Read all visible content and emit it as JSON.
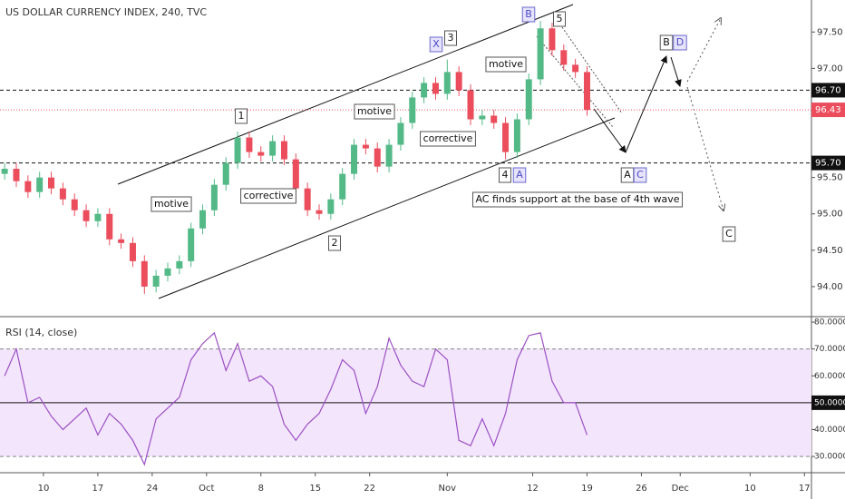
{
  "chart_data": [
    {
      "type": "candlestick",
      "title": "US DOLLAR CURRENCY INDEX, 240, TVC",
      "x": [
        4,
        5.5,
        7,
        8.5,
        10,
        11.5,
        13,
        14.5,
        16,
        17.5,
        19,
        20.5,
        22,
        23.5,
        25,
        26.5,
        28,
        29.5,
        31,
        32.5,
        34,
        35.5,
        37,
        38.5,
        40,
        41.5,
        43,
        44.5,
        46,
        47.5,
        49,
        50.5,
        52,
        53.5,
        55,
        56.5,
        58,
        59.5,
        61,
        62.5,
        64,
        65.5,
        67,
        68.5,
        70,
        71.5,
        73,
        74.5,
        76,
        77.5,
        79
      ],
      "open": [
        95.55,
        95.62,
        95.45,
        95.3,
        95.5,
        95.35,
        95.2,
        95.05,
        94.9,
        95.0,
        94.65,
        94.6,
        94.35,
        94.0,
        94.15,
        94.25,
        94.35,
        94.8,
        95.05,
        95.4,
        95.7,
        96.05,
        95.85,
        95.8,
        96.0,
        95.75,
        95.35,
        95.05,
        95.0,
        95.2,
        95.55,
        95.95,
        95.9,
        95.65,
        95.95,
        96.25,
        96.6,
        96.8,
        96.65,
        96.95,
        96.7,
        96.3,
        96.35,
        96.25,
        95.85,
        96.3,
        96.85,
        97.55,
        97.25,
        97.05,
        96.95
      ],
      "high": [
        95.7,
        95.7,
        95.53,
        95.58,
        95.58,
        95.43,
        95.28,
        95.13,
        95.08,
        95.08,
        94.73,
        94.68,
        94.43,
        94.23,
        94.33,
        94.43,
        94.88,
        95.13,
        95.48,
        95.78,
        96.13,
        96.13,
        95.93,
        96.08,
        96.08,
        95.83,
        95.43,
        95.13,
        95.28,
        95.63,
        96.03,
        96.03,
        95.98,
        96.03,
        96.33,
        96.68,
        96.88,
        96.88,
        97.12,
        97.03,
        96.78,
        96.43,
        96.43,
        96.33,
        96.38,
        96.93,
        97.65,
        97.63,
        97.33,
        97.13,
        97.03
      ],
      "low": [
        95.47,
        95.37,
        95.22,
        95.22,
        95.27,
        95.12,
        94.97,
        94.82,
        94.82,
        94.57,
        94.52,
        94.27,
        93.9,
        93.92,
        94.07,
        94.17,
        94.27,
        94.72,
        94.97,
        95.32,
        95.62,
        95.77,
        95.72,
        95.72,
        95.67,
        95.27,
        94.97,
        94.92,
        94.92,
        95.12,
        95.47,
        95.82,
        95.57,
        95.57,
        95.87,
        96.17,
        96.52,
        96.57,
        96.57,
        96.62,
        96.22,
        96.22,
        96.17,
        95.75,
        95.77,
        96.22,
        96.77,
        97.17,
        96.97,
        96.87,
        96.35
      ],
      "close": [
        95.62,
        95.45,
        95.3,
        95.5,
        95.35,
        95.2,
        95.05,
        94.9,
        95.0,
        94.65,
        94.6,
        94.35,
        94.0,
        94.15,
        94.25,
        94.35,
        94.8,
        95.05,
        95.4,
        95.7,
        96.05,
        95.85,
        95.8,
        96.0,
        95.75,
        95.35,
        95.05,
        95.0,
        95.2,
        95.55,
        95.95,
        95.9,
        95.65,
        95.95,
        96.25,
        96.6,
        96.8,
        96.65,
        96.95,
        96.7,
        96.3,
        96.35,
        96.25,
        95.85,
        96.3,
        96.85,
        97.55,
        97.25,
        97.05,
        96.95,
        96.43
      ],
      "up_color": "#53b987",
      "down_color": "#eb4d5c",
      "xlim": [
        3.4,
        107.9
      ],
      "ylim": [
        93.6,
        97.94
      ],
      "yticks": [
        {
          "value": 94,
          "label": "94.00"
        },
        {
          "value": 94.5,
          "label": "94.50"
        },
        {
          "value": 95,
          "label": "95.00"
        },
        {
          "value": 95.5,
          "label": "95.50"
        },
        {
          "value": 97,
          "label": "97.00"
        },
        {
          "value": 97.5,
          "label": "97.50"
        }
      ],
      "hlines": [
        {
          "value": 96.7,
          "label": "96.70"
        },
        {
          "value": 95.7,
          "label": "95.70"
        }
      ],
      "last_price": {
        "value": 96.43,
        "label": "96.43"
      },
      "annotations": [
        "1",
        "2",
        "3",
        "X",
        "B",
        "5",
        "4",
        "A",
        "A",
        "C",
        "B",
        "D",
        "C",
        "motive",
        "corrective",
        "motive",
        "corrective",
        "motive",
        "AC finds support at the base of 4th wave"
      ]
    },
    {
      "type": "line",
      "title": "RSI (14, close)",
      "x": [
        4,
        5.5,
        7,
        8.5,
        10,
        11.5,
        13,
        14.5,
        16,
        17.5,
        19,
        20.5,
        22,
        23.5,
        25,
        26.5,
        28,
        29.5,
        31,
        32.5,
        34,
        35.5,
        37,
        38.5,
        40,
        41.5,
        43,
        44.5,
        46,
        47.5,
        49,
        50.5,
        52,
        53.5,
        55,
        56.5,
        58,
        59.5,
        61,
        62.5,
        64,
        65.5,
        67,
        68.5,
        70,
        71.5,
        73,
        74.5,
        76,
        77.5,
        79
      ],
      "values": [
        60,
        70,
        50,
        52,
        45,
        40,
        44,
        48,
        38,
        46,
        42,
        36,
        27,
        44,
        48,
        52,
        66,
        72,
        76,
        62,
        72,
        58,
        60,
        56,
        42,
        36,
        42,
        46,
        55,
        66,
        62,
        46,
        56,
        74,
        64,
        58,
        56,
        70,
        66,
        36,
        34,
        44,
        34,
        46,
        66,
        75,
        76,
        58,
        50,
        50,
        38
      ],
      "color": "#9c4fc4",
      "band": [
        30,
        70
      ],
      "midline": 50,
      "xlim": [
        3.4,
        107.9
      ],
      "ylim": [
        24.3,
        81.7
      ],
      "yticks": [
        {
          "value": 30,
          "label": "30.0000"
        },
        {
          "value": 40,
          "label": "40.0000"
        },
        {
          "value": 50,
          "label": "50.0000"
        },
        {
          "value": 60,
          "label": "60.0000"
        },
        {
          "value": 70,
          "label": "70.0000"
        },
        {
          "value": 80,
          "label": "80.0000"
        }
      ],
      "xticks": [
        {
          "value": 9,
          "label": "10"
        },
        {
          "value": 16,
          "label": "17"
        },
        {
          "value": 23,
          "label": "24"
        },
        {
          "value": 30,
          "label": "Oct"
        },
        {
          "value": 37,
          "label": "8"
        },
        {
          "value": 44,
          "label": "15"
        },
        {
          "value": 51,
          "label": "22"
        },
        {
          "value": 61,
          "label": "Nov"
        },
        {
          "value": 72,
          "label": "12"
        },
        {
          "value": 79,
          "label": "19"
        },
        {
          "value": 86,
          "label": "26"
        },
        {
          "value": 91,
          "label": "Dec"
        },
        {
          "value": 100,
          "label": "10"
        },
        {
          "value": 107,
          "label": "17"
        }
      ]
    }
  ]
}
